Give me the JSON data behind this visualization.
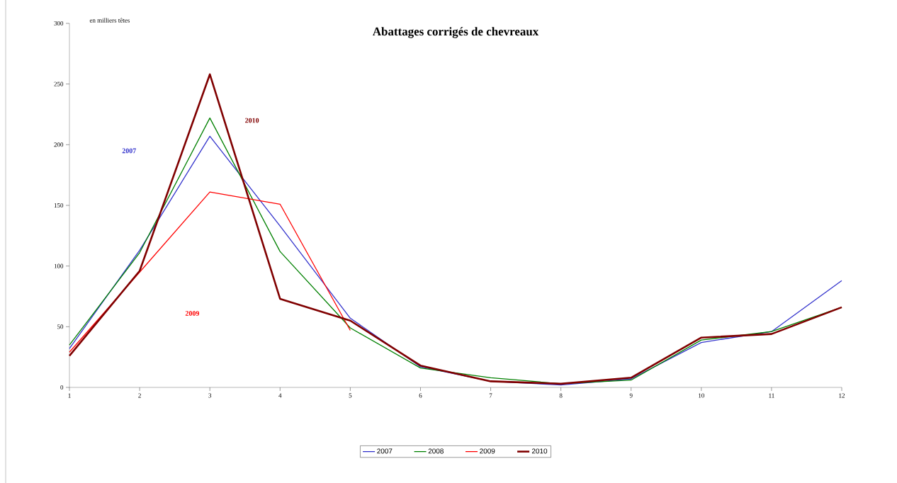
{
  "chart_data": {
    "type": "line",
    "title": "Abattages corrigés de chevreaux",
    "ylabel": "en milliers têtes",
    "x": [
      1,
      2,
      3,
      4,
      5,
      6,
      7,
      8,
      9,
      10,
      11,
      12
    ],
    "xlim": [
      1,
      12
    ],
    "xticks": [
      1,
      2,
      3,
      4,
      5,
      6,
      7,
      8,
      9,
      10,
      11,
      12
    ],
    "ylim": [
      0,
      300
    ],
    "yticks": [
      0,
      50,
      100,
      150,
      200,
      250,
      300
    ],
    "grid": false,
    "legend": "bottom",
    "marker": "none",
    "line_style": "solid",
    "series": [
      {
        "name": "2007",
        "color": "#3333cc",
        "values": [
          32,
          113,
          207,
          133,
          57,
          17,
          5,
          2,
          7,
          37,
          46,
          88
        ]
      },
      {
        "name": "2008",
        "color": "#008000",
        "values": [
          35,
          111,
          222,
          112,
          49,
          16,
          8,
          3,
          6,
          39,
          46,
          66
        ]
      },
      {
        "name": "2009",
        "color": "#ff0000",
        "values": [
          29,
          95,
          161,
          151,
          47,
          null,
          null,
          null,
          null,
          null,
          null,
          null
        ]
      },
      {
        "name": "2010",
        "color": "#800000",
        "values": [
          26,
          96,
          258,
          73,
          55,
          18,
          5,
          3,
          8,
          41,
          44,
          66
        ]
      }
    ],
    "annotations": [
      "2007",
      "2010",
      "2009"
    ]
  }
}
